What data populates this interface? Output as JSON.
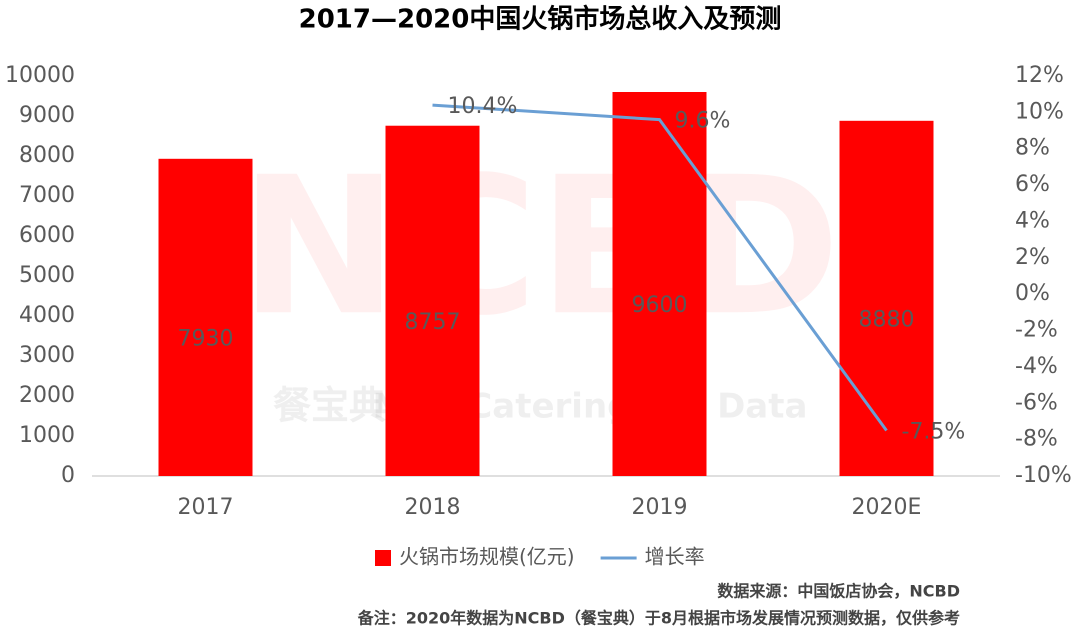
{
  "chart_data": {
    "type": "bar",
    "title": "2017—2020中国火锅市场总收入及预测",
    "categories": [
      "2017",
      "2018",
      "2019",
      "2020E"
    ],
    "series": [
      {
        "name": "火锅市场规模(亿元)",
        "type": "bar",
        "color": "#ff0000",
        "values": [
          7930,
          8757,
          9600,
          8880
        ]
      },
      {
        "name": "增长率",
        "type": "line",
        "axis": "y2",
        "color": "#6a9fd4",
        "values": [
          null,
          10.4,
          9.6,
          -7.5
        ],
        "value_labels": [
          null,
          "10.4%",
          "9.6%",
          "-7.5%"
        ]
      }
    ],
    "ylim": [
      0,
      10000
    ],
    "yticks": [
      0,
      1000,
      2000,
      3000,
      4000,
      5000,
      6000,
      7000,
      8000,
      9000,
      10000
    ],
    "y2lim": [
      -10,
      12
    ],
    "y2ticks": [
      {
        "value": -10,
        "label": "-10%"
      },
      {
        "value": -8,
        "label": "-8%"
      },
      {
        "value": -6,
        "label": "-6%"
      },
      {
        "value": -4,
        "label": "-4%"
      },
      {
        "value": -2,
        "label": "-2%"
      },
      {
        "value": 0,
        "label": "0%"
      },
      {
        "value": 2,
        "label": "2%"
      },
      {
        "value": 4,
        "label": "4%"
      },
      {
        "value": 6,
        "label": "6%"
      },
      {
        "value": 8,
        "label": "8%"
      },
      {
        "value": 10,
        "label": "10%"
      },
      {
        "value": 12,
        "label": "12%"
      }
    ],
    "grid": false,
    "legend": "bottom",
    "watermark": [
      "NCBD",
      "餐宝典",
      "New Catering Big Data"
    ],
    "notes": [
      "数据来源：中国饭店协会，NCBD",
      "备注：2020年数据为NCBD（餐宝典）于8月根据市场发展情况预测数据，仅供参考"
    ]
  }
}
